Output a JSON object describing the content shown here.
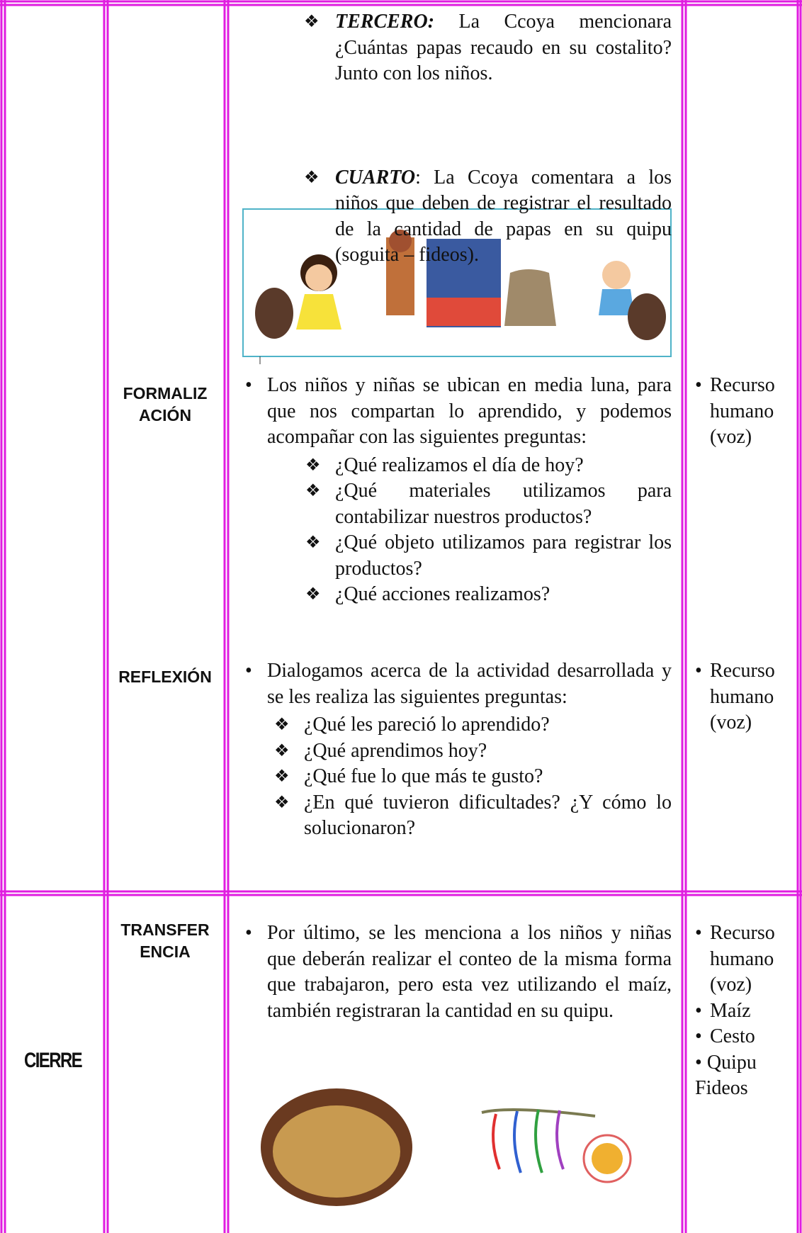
{
  "upper": {
    "steps": [
      {
        "label": "TERCERO:",
        "text": "La Ccoya mencionara ¿Cuántas papas recaudo en su costalito? Junto con los niños."
      },
      {
        "label": "CUARTO",
        "text": ": La Ccoya comentara a los niños que deben de registrar el resultado de la cantidad de papas en su quipu (soguita – fideos)."
      }
    ],
    "formalizacion": {
      "phase_lines": [
        "FORMALIZ",
        "ACIÓN"
      ],
      "text": "Los niños y niñas se ubican en media luna, para que nos compartan lo aprendido, y podemos acompañar con las siguientes preguntas:",
      "questions": [
        "¿Qué realizamos el día de hoy?",
        "¿Qué materiales utilizamos para contabilizar nuestros productos?",
        "¿Qué objeto utilizamos para registrar los productos?",
        "¿Qué acciones realizamos?"
      ],
      "resources": [
        "Recurso humano (voz)"
      ]
    },
    "reflexion": {
      "phase_lines": [
        "REFLEXIÓN"
      ],
      "text": "Dialogamos acerca de la actividad desarrollada y se les realiza las siguientes preguntas:",
      "questions": [
        "¿Qué les pareció lo aprendido?",
        "¿Qué aprendimos hoy?",
        "¿Qué fue lo que más te gusto?",
        "¿En qué tuvieron dificultades? ¿Y cómo lo solucionaron?"
      ],
      "resources": [
        "Recurso humano (voz)"
      ]
    }
  },
  "cierre": {
    "stage": "CIERRE",
    "phase_lines": [
      "TRANSFER",
      "ENCIA"
    ],
    "text": "Por último, se les menciona a los niños y niñas que deberán realizar el conteo de la misma forma que trabajaron, pero esta vez utilizando el maíz, también registraran la cantidad en su quipu.",
    "resources": [
      "Recurso humano (voz)",
      "Maíz",
      "Cesto",
      "Quipu Fideos"
    ]
  }
}
